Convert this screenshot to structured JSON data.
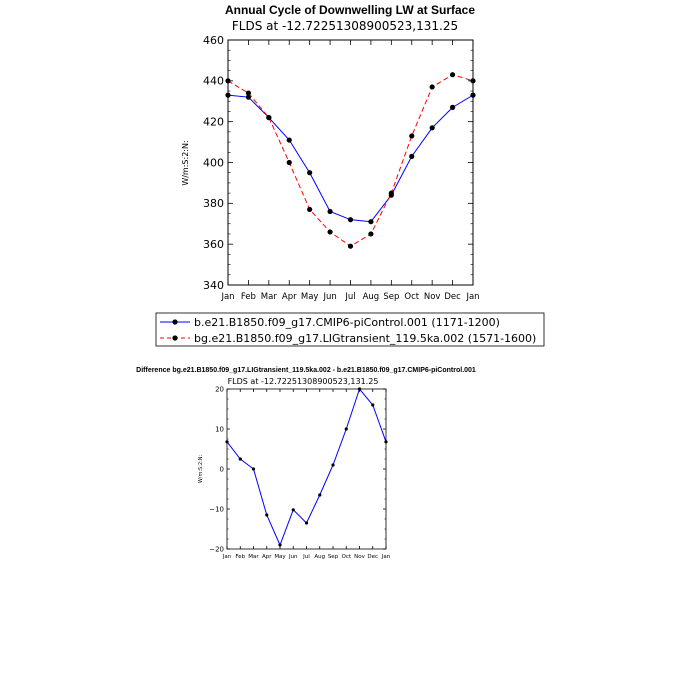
{
  "chart_data": [
    {
      "type": "line",
      "title": "Annual Cycle of Downwelling LW at Surface",
      "subtitle": "FLDS at -12.72251308900523,131.25",
      "xlabel": "",
      "ylabel": "W/m:S:2:N:",
      "categories": [
        "Jan",
        "Feb",
        "Mar",
        "Apr",
        "May",
        "Jun",
        "Jul",
        "Aug",
        "Sep",
        "Oct",
        "Nov",
        "Dec",
        "Jan"
      ],
      "ylim": [
        340,
        460
      ],
      "yticks": [
        340,
        360,
        380,
        400,
        420,
        440,
        460
      ],
      "series": [
        {
          "name": "b.e21.B1850.f09_g17.CMIP6-piControl.001 (1171-1200)",
          "color": "#0000ff",
          "dash": "solid",
          "values": [
            433,
            432,
            422,
            411,
            395,
            376,
            372,
            371,
            384,
            403,
            417,
            427,
            433
          ]
        },
        {
          "name": "bg.e21.B1850.f09_g17.LIGtransient_119.5ka.002 (1571-1600)",
          "color": "#ff0000",
          "dash": "dashed",
          "values": [
            440,
            434,
            422,
            400,
            377,
            366,
            359,
            365,
            385,
            413,
            437,
            443,
            440
          ]
        }
      ]
    },
    {
      "type": "line",
      "title": "Difference bg.e21.B1850.f09_g17.LIGtransient_119.5ka.002 - b.e21.B1850.f09_g17.CMIP6-piControl.001",
      "subtitle": "FLDS at -12.72251308900523,131.25",
      "xlabel": "",
      "ylabel": "W/m:S:2:N:",
      "categories": [
        "Jan",
        "Feb",
        "Mar",
        "Apr",
        "May",
        "Jun",
        "Jul",
        "Aug",
        "Sep",
        "Oct",
        "Nov",
        "Dec",
        "Jan"
      ],
      "ylim": [
        -20,
        20
      ],
      "yticks": [
        -20,
        -10,
        0,
        10,
        20
      ],
      "series": [
        {
          "name": "Difference",
          "color": "#0000ff",
          "dash": "solid",
          "values": [
            6.8,
            2.5,
            0,
            -11.5,
            -19,
            -10.2,
            -13.5,
            -6.5,
            1,
            10,
            20,
            16,
            6.8
          ]
        }
      ]
    }
  ]
}
